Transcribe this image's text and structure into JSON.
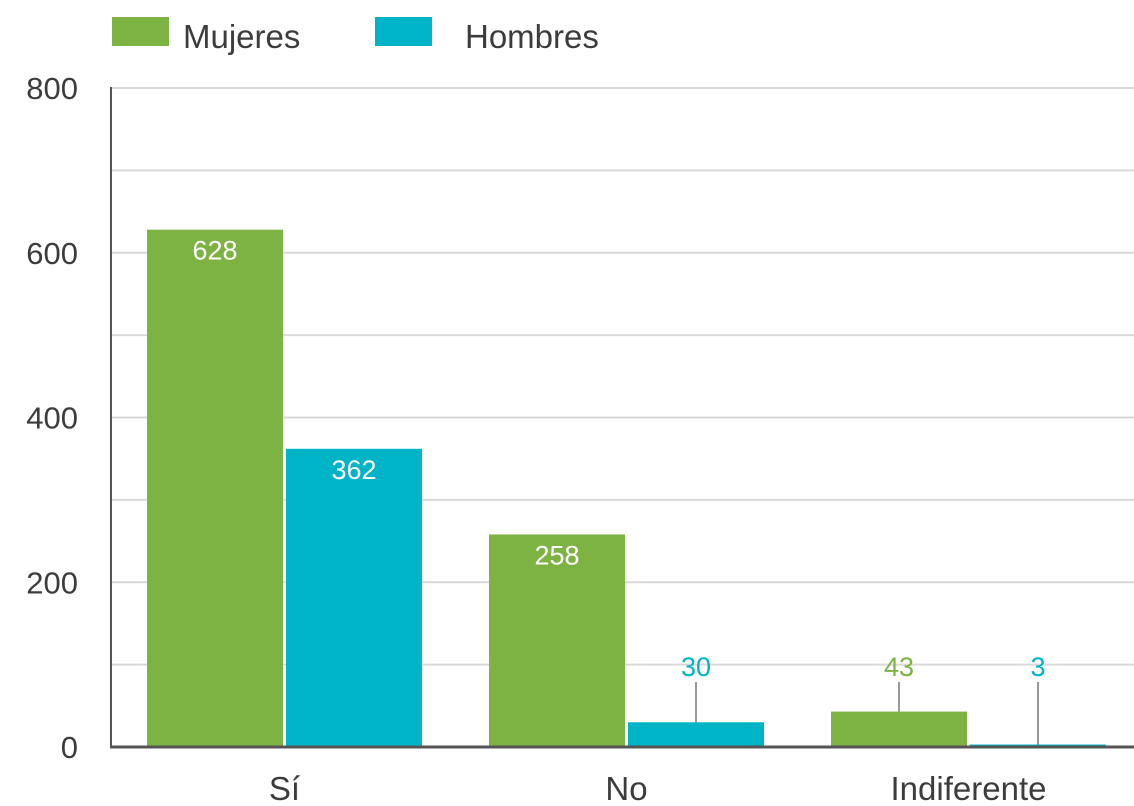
{
  "chart_data": {
    "type": "bar",
    "title": "",
    "xlabel": "",
    "ylabel": "",
    "categories": [
      "Sí",
      "No",
      "Indiferente"
    ],
    "series": [
      {
        "name": "Mujeres",
        "color": "#7cb342",
        "values": [
          628,
          258,
          43
        ]
      },
      {
        "name": "Hombres",
        "color": "#00b4c8",
        "values": [
          362,
          30,
          3
        ]
      }
    ],
    "data_labels": {
      "Mujeres": [
        "628",
        "258",
        "43"
      ],
      "Hombres": [
        "362",
        "30",
        "3"
      ]
    },
    "ylim": [
      0,
      800
    ],
    "yticks": [
      "0",
      "200",
      "400",
      "600",
      "800"
    ],
    "grid": true,
    "legend_position": "top-left",
    "colors": {
      "gridline": "#d9d9d9",
      "axis": "#555555",
      "text": "#3c3c3c",
      "label_inside": "#ffffff"
    }
  }
}
